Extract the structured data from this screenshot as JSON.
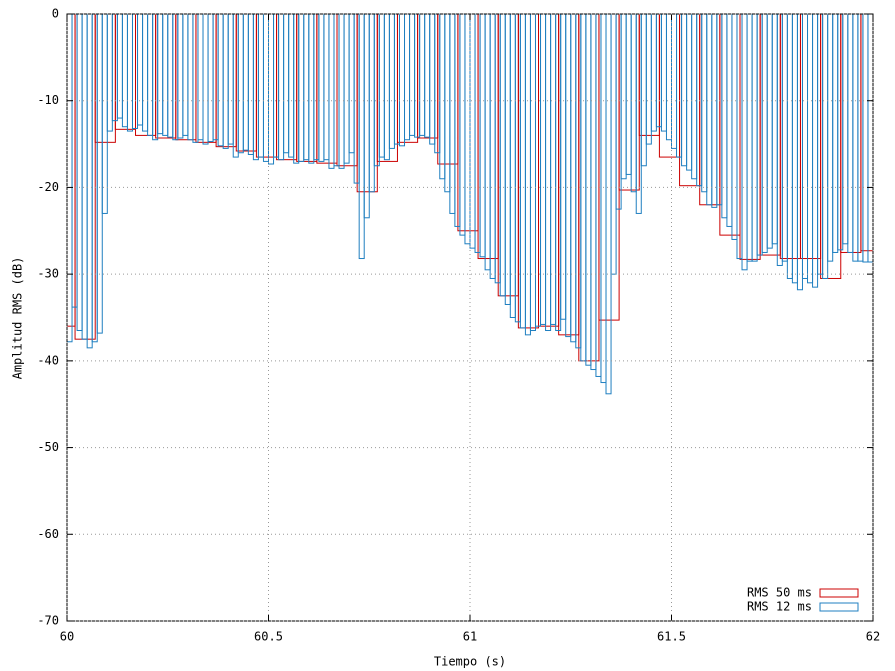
{
  "chart_data": {
    "type": "boxes",
    "xlabel": "Tiempo (s)",
    "ylabel": "Amplitud RMS (dB)",
    "xlim": [
      60,
      62
    ],
    "ylim": [
      -70,
      0
    ],
    "xticks": [
      60,
      60.5,
      61,
      61.5,
      62
    ],
    "yticks": [
      0,
      -10,
      -20,
      -30,
      -40,
      -50,
      -60,
      -70
    ],
    "grid": true,
    "legend": "bottom-right",
    "series": [
      {
        "name": "RMS 50 ms",
        "color": "#cc0000",
        "x": [
          59.97,
          60.02,
          60.07,
          60.12,
          60.17,
          60.22,
          60.27,
          60.32,
          60.37,
          60.42,
          60.47,
          60.52,
          60.57,
          60.62,
          60.67,
          60.72,
          60.77,
          60.82,
          60.87,
          60.92,
          60.97,
          61.02,
          61.07,
          61.12,
          61.17,
          61.22,
          61.27,
          61.32,
          61.37,
          61.42,
          61.47,
          61.52,
          61.57,
          61.62,
          61.67,
          61.72,
          61.77,
          61.82,
          61.87,
          61.92,
          61.97
        ],
        "values": [
          -36,
          -37.5,
          -14.8,
          -13.3,
          -14,
          -14.3,
          -14.5,
          -14.8,
          -15.3,
          -15.8,
          -16.5,
          -16.8,
          -17,
          -17.2,
          -17.5,
          -20.5,
          -17,
          -14.8,
          -14.3,
          -17.3,
          -25,
          -28.2,
          -32.5,
          -36.2,
          -36,
          -37,
          -40,
          -35.3,
          -20.3,
          -14,
          -16.5,
          -19.8,
          -22,
          -25.5,
          -28.3,
          -27.8,
          -28.2,
          -28.2,
          -30.5,
          -27.5,
          -27.3
        ]
      },
      {
        "name": "RMS 12 ms",
        "color": "#1f7fc0",
        "x": [
          60,
          60.0125,
          60.025,
          60.0375,
          60.05,
          60.0625,
          60.075,
          60.0875,
          60.1,
          60.1125,
          60.125,
          60.1375,
          60.15,
          60.1625,
          60.175,
          60.1875,
          60.2,
          60.2125,
          60.225,
          60.2375,
          60.25,
          60.2625,
          60.275,
          60.2875,
          60.3,
          60.3125,
          60.325,
          60.3375,
          60.35,
          60.3625,
          60.375,
          60.3875,
          60.4,
          60.4125,
          60.425,
          60.4375,
          60.45,
          60.4625,
          60.475,
          60.4875,
          60.5,
          60.5125,
          60.525,
          60.5375,
          60.55,
          60.5625,
          60.575,
          60.5875,
          60.6,
          60.6125,
          60.625,
          60.6375,
          60.65,
          60.6625,
          60.675,
          60.6875,
          60.7,
          60.7125,
          60.725,
          60.7375,
          60.75,
          60.7625,
          60.775,
          60.7875,
          60.8,
          60.8125,
          60.825,
          60.8375,
          60.85,
          60.8625,
          60.875,
          60.8875,
          60.9,
          60.9125,
          60.925,
          60.9375,
          60.95,
          60.9625,
          60.975,
          60.9875,
          61,
          61.0125,
          61.025,
          61.0375,
          61.05,
          61.0625,
          61.075,
          61.0875,
          61.1,
          61.1125,
          61.125,
          61.1375,
          61.15,
          61.1625,
          61.175,
          61.1875,
          61.2,
          61.2125,
          61.225,
          61.2375,
          61.25,
          61.2625,
          61.275,
          61.2875,
          61.3,
          61.3125,
          61.325,
          61.3375,
          61.35,
          61.3625,
          61.375,
          61.3875,
          61.4,
          61.4125,
          61.425,
          61.4375,
          61.45,
          61.4625,
          61.475,
          61.4875,
          61.5,
          61.5125,
          61.525,
          61.5375,
          61.55,
          61.5625,
          61.575,
          61.5875,
          61.6,
          61.6125,
          61.625,
          61.6375,
          61.65,
          61.6625,
          61.675,
          61.6875,
          61.7,
          61.7125,
          61.725,
          61.7375,
          61.75,
          61.7625,
          61.775,
          61.7875,
          61.8,
          61.8125,
          61.825,
          61.8375,
          61.85,
          61.8625,
          61.875,
          61.8875,
          61.9,
          61.9125,
          61.925,
          61.9375,
          61.95,
          61.9625,
          61.975,
          61.9875
        ],
        "values": [
          -37.8,
          -33.8,
          -36.5,
          -37.5,
          -38.5,
          -37.8,
          -36.8,
          -23,
          -13.5,
          -12.3,
          -12,
          -13,
          -13.5,
          -13.2,
          -12.8,
          -13.5,
          -14,
          -14.5,
          -13.8,
          -14,
          -14.2,
          -14.5,
          -14.3,
          -14,
          -14.5,
          -14.8,
          -14.5,
          -15,
          -14.7,
          -14.5,
          -15.2,
          -15.5,
          -15,
          -16.5,
          -16,
          -15.7,
          -16.2,
          -16.8,
          -16.5,
          -17,
          -17.3,
          -16.5,
          -16.8,
          -16,
          -16.5,
          -17.2,
          -17,
          -16.8,
          -17.2,
          -16.8,
          -17,
          -16.8,
          -17.8,
          -17.5,
          -17.8,
          -17.2,
          -16,
          -19.5,
          -28.2,
          -23.5,
          -20.5,
          -17.5,
          -16.5,
          -16.8,
          -15.5,
          -15,
          -15.2,
          -14.5,
          -14,
          -14.2,
          -14,
          -14.2,
          -15,
          -16,
          -19,
          -20.5,
          -23,
          -24.5,
          -25.5,
          -26.5,
          -27,
          -27.5,
          -28,
          -29.5,
          -30.5,
          -31,
          -32.5,
          -33.5,
          -35,
          -35.5,
          -36.2,
          -37,
          -36.5,
          -36,
          -35.8,
          -36.5,
          -35.8,
          -36.5,
          -35.2,
          -37.2,
          -37.8,
          -38.5,
          -40,
          -40.5,
          -41,
          -41.8,
          -42.5,
          -43.8,
          -30,
          -22.5,
          -19,
          -18.5,
          -20.5,
          -23,
          -17.5,
          -15,
          -13.5,
          -13,
          -13.5,
          -14.5,
          -15.5,
          -16.5,
          -17.5,
          -18,
          -19,
          -19.8,
          -20.5,
          -22,
          -22.3,
          -22,
          -23.5,
          -24.5,
          -26,
          -28.2,
          -29.5,
          -28.5,
          -28.5,
          -27.8,
          -27.5,
          -27,
          -26.5,
          -29,
          -28.5,
          -30.5,
          -31,
          -31.8,
          -30.5,
          -31,
          -31.5,
          -30,
          -30.5,
          -28.5,
          -27.5,
          -27.2,
          -26.5,
          -27.5,
          -28.5,
          -28.5,
          -28.6,
          -28.6
        ]
      }
    ]
  }
}
